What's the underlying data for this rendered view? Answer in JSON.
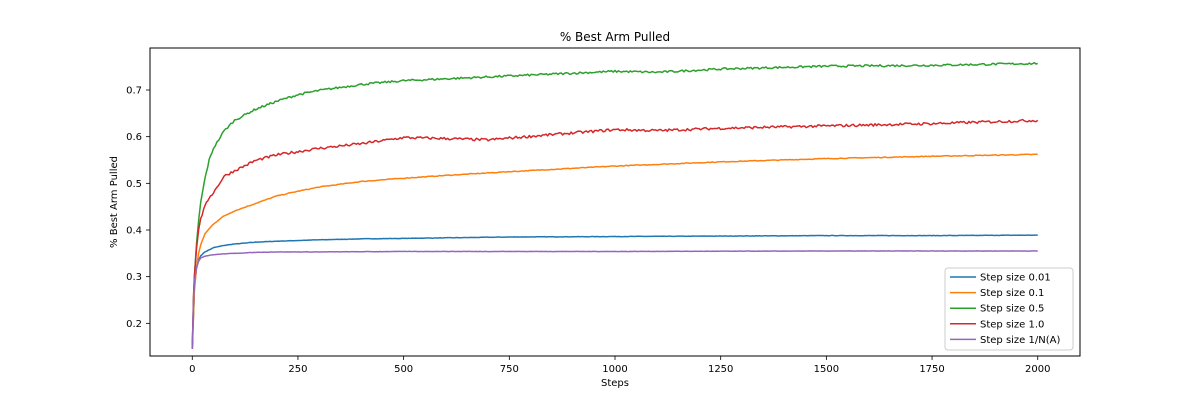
{
  "chart_data": {
    "type": "line",
    "title": "% Best Arm Pulled",
    "xlabel": "Steps",
    "ylabel": "% Best Arm Pulled",
    "xlim": [
      -100,
      2100
    ],
    "ylim": [
      0.13,
      0.79
    ],
    "xticks": [
      0,
      250,
      500,
      750,
      1000,
      1250,
      1500,
      1750,
      2000
    ],
    "yticks": [
      0.2,
      0.3,
      0.4,
      0.5,
      0.6,
      0.7
    ],
    "grid": false,
    "legend_position": "bottom-right",
    "series": [
      {
        "name": "Step size 0.01",
        "color": "#1f77b4",
        "points": [
          [
            0,
            0.145
          ],
          [
            3,
            0.22
          ],
          [
            5,
            0.275
          ],
          [
            10,
            0.318
          ],
          [
            15,
            0.335
          ],
          [
            20,
            0.345
          ],
          [
            30,
            0.353
          ],
          [
            50,
            0.362
          ],
          [
            75,
            0.367
          ],
          [
            100,
            0.37
          ],
          [
            150,
            0.374
          ],
          [
            200,
            0.376
          ],
          [
            300,
            0.379
          ],
          [
            400,
            0.381
          ],
          [
            500,
            0.382
          ],
          [
            750,
            0.385
          ],
          [
            1000,
            0.386
          ],
          [
            1250,
            0.387
          ],
          [
            1500,
            0.388
          ],
          [
            1750,
            0.388
          ],
          [
            2000,
            0.389
          ]
        ]
      },
      {
        "name": "Step size 0.1",
        "color": "#ff7f0e",
        "points": [
          [
            0,
            0.145
          ],
          [
            3,
            0.22
          ],
          [
            5,
            0.27
          ],
          [
            10,
            0.32
          ],
          [
            15,
            0.35
          ],
          [
            20,
            0.368
          ],
          [
            30,
            0.392
          ],
          [
            50,
            0.413
          ],
          [
            75,
            0.43
          ],
          [
            100,
            0.441
          ],
          [
            150,
            0.457
          ],
          [
            200,
            0.473
          ],
          [
            250,
            0.483
          ],
          [
            300,
            0.492
          ],
          [
            400,
            0.504
          ],
          [
            500,
            0.511
          ],
          [
            600,
            0.517
          ],
          [
            750,
            0.525
          ],
          [
            1000,
            0.537
          ],
          [
            1250,
            0.546
          ],
          [
            1500,
            0.553
          ],
          [
            1750,
            0.558
          ],
          [
            2000,
            0.562
          ]
        ]
      },
      {
        "name": "Step size 0.5",
        "color": "#2ca02c",
        "points": [
          [
            0,
            0.145
          ],
          [
            3,
            0.25
          ],
          [
            5,
            0.3
          ],
          [
            10,
            0.37
          ],
          [
            15,
            0.42
          ],
          [
            20,
            0.46
          ],
          [
            30,
            0.51
          ],
          [
            40,
            0.55
          ],
          [
            50,
            0.575
          ],
          [
            75,
            0.612
          ],
          [
            100,
            0.635
          ],
          [
            150,
            0.659
          ],
          [
            200,
            0.676
          ],
          [
            250,
            0.69
          ],
          [
            300,
            0.699
          ],
          [
            400,
            0.712
          ],
          [
            500,
            0.72
          ],
          [
            600,
            0.724
          ],
          [
            750,
            0.73
          ],
          [
            1000,
            0.74
          ],
          [
            1100,
            0.738
          ],
          [
            1250,
            0.745
          ],
          [
            1500,
            0.751
          ],
          [
            1750,
            0.753
          ],
          [
            2000,
            0.757
          ]
        ]
      },
      {
        "name": "Step size 1.0",
        "color": "#d62728",
        "points": [
          [
            0,
            0.145
          ],
          [
            3,
            0.26
          ],
          [
            5,
            0.3
          ],
          [
            10,
            0.36
          ],
          [
            15,
            0.4
          ],
          [
            20,
            0.425
          ],
          [
            30,
            0.45
          ],
          [
            40,
            0.47
          ],
          [
            50,
            0.48
          ],
          [
            75,
            0.515
          ],
          [
            100,
            0.527
          ],
          [
            150,
            0.549
          ],
          [
            200,
            0.561
          ],
          [
            250,
            0.568
          ],
          [
            300,
            0.575
          ],
          [
            400,
            0.585
          ],
          [
            500,
            0.598
          ],
          [
            600,
            0.596
          ],
          [
            700,
            0.593
          ],
          [
            750,
            0.597
          ],
          [
            900,
            0.608
          ],
          [
            1000,
            0.615
          ],
          [
            1100,
            0.613
          ],
          [
            1250,
            0.618
          ],
          [
            1500,
            0.623
          ],
          [
            1750,
            0.628
          ],
          [
            2000,
            0.635
          ]
        ]
      },
      {
        "name": "Step size 1/N(A)",
        "color": "#9467bd",
        "points": [
          [
            0,
            0.145
          ],
          [
            3,
            0.25
          ],
          [
            5,
            0.29
          ],
          [
            10,
            0.32
          ],
          [
            15,
            0.333
          ],
          [
            20,
            0.34
          ],
          [
            30,
            0.344
          ],
          [
            50,
            0.347
          ],
          [
            75,
            0.349
          ],
          [
            100,
            0.35
          ],
          [
            150,
            0.352
          ],
          [
            200,
            0.353
          ],
          [
            300,
            0.353
          ],
          [
            500,
            0.354
          ],
          [
            1000,
            0.354
          ],
          [
            1500,
            0.355
          ],
          [
            2000,
            0.355
          ]
        ]
      }
    ]
  }
}
